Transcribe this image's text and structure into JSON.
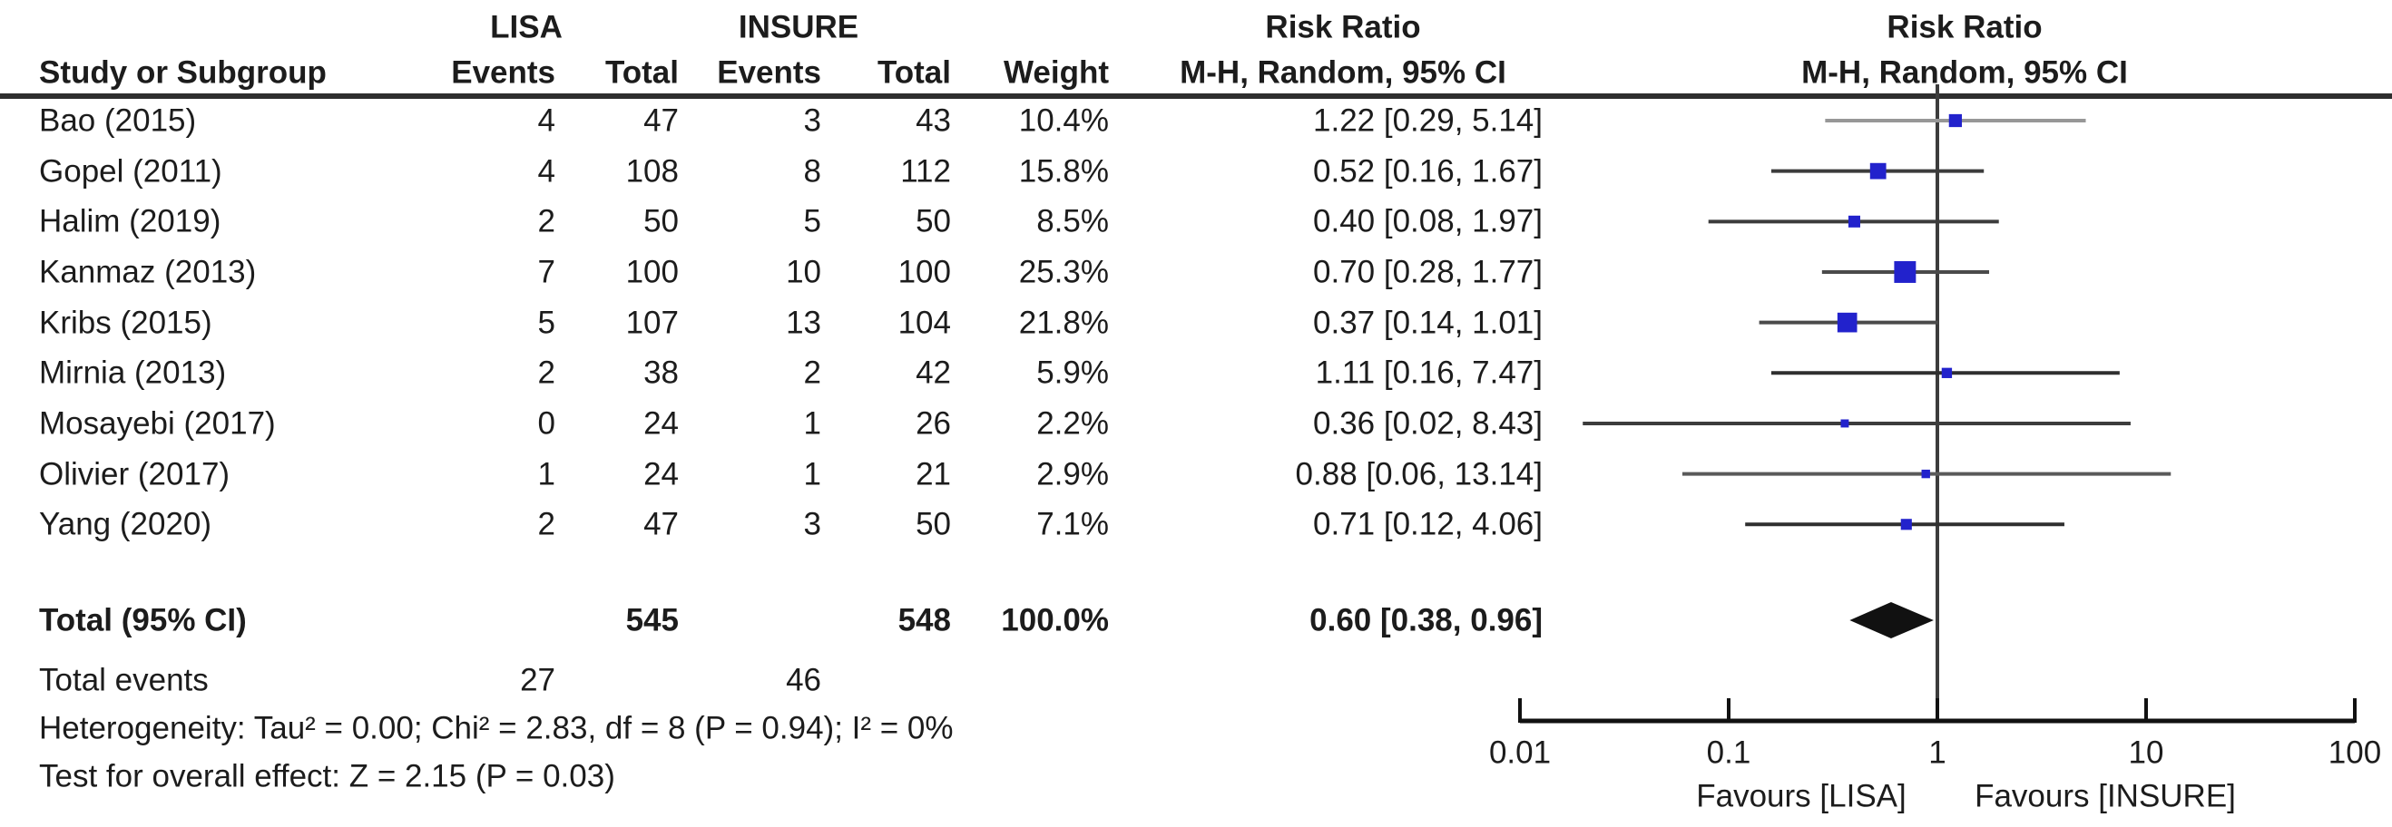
{
  "chart_data": {
    "type": "forest",
    "effect_measure": "Risk Ratio",
    "model": "M-H, Random, 95% CI",
    "groups": {
      "group1": "LISA",
      "group2": "INSURE"
    },
    "columns": {
      "study": "Study or Subgroup",
      "events": "Events",
      "total": "Total",
      "weight": "Weight",
      "effect_line1": "Risk Ratio",
      "effect_line2": "M-H, Random, 95% CI"
    },
    "studies": [
      {
        "study": "Bao (2015)",
        "events1": "4",
        "total1": "47",
        "events2": "3",
        "total2": "43",
        "weight": "10.4%",
        "weight_pct": 10.4,
        "rr": 1.22,
        "ci_low": 0.29,
        "ci_high": 5.14,
        "effect_label": "1.22 [0.29, 5.14]",
        "line_color": "#979797"
      },
      {
        "study": "Gopel (2011)",
        "events1": "4",
        "total1": "108",
        "events2": "8",
        "total2": "112",
        "weight": "15.8%",
        "weight_pct": 15.8,
        "rr": 0.52,
        "ci_low": 0.16,
        "ci_high": 1.67,
        "effect_label": "0.52 [0.16, 1.67]",
        "line_color": "#3c3c3c"
      },
      {
        "study": "Halim (2019)",
        "events1": "2",
        "total1": "50",
        "events2": "5",
        "total2": "50",
        "weight": "8.5%",
        "weight_pct": 8.5,
        "rr": 0.4,
        "ci_low": 0.08,
        "ci_high": 1.97,
        "effect_label": "0.40 [0.08, 1.97]",
        "line_color": "#3c3c3c"
      },
      {
        "study": "Kanmaz (2013)",
        "events1": "7",
        "total1": "100",
        "events2": "10",
        "total2": "100",
        "weight": "25.3%",
        "weight_pct": 25.3,
        "rr": 0.7,
        "ci_low": 0.28,
        "ci_high": 1.77,
        "effect_label": "0.70 [0.28, 1.77]",
        "line_color": "#4a4a4a"
      },
      {
        "study": "Kribs (2015)",
        "events1": "5",
        "total1": "107",
        "events2": "13",
        "total2": "104",
        "weight": "21.8%",
        "weight_pct": 21.8,
        "rr": 0.37,
        "ci_low": 0.14,
        "ci_high": 1.01,
        "effect_label": "0.37 [0.14, 1.01]",
        "line_color": "#4a4a4a"
      },
      {
        "study": "Mirnia (2013)",
        "events1": "2",
        "total1": "38",
        "events2": "2",
        "total2": "42",
        "weight": "5.9%",
        "weight_pct": 5.9,
        "rr": 1.11,
        "ci_low": 0.16,
        "ci_high": 7.47,
        "effect_label": "1.11 [0.16, 7.47]",
        "line_color": "#2f2f2f"
      },
      {
        "study": "Mosayebi (2017)",
        "events1": "0",
        "total1": "24",
        "events2": "1",
        "total2": "26",
        "weight": "2.2%",
        "weight_pct": 2.2,
        "rr": 0.36,
        "ci_low": 0.02,
        "ci_high": 8.43,
        "effect_label": "0.36 [0.02, 8.43]",
        "line_color": "#3c3c3c"
      },
      {
        "study": "Olivier (2017)",
        "events1": "1",
        "total1": "24",
        "events2": "1",
        "total2": "21",
        "weight": "2.9%",
        "weight_pct": 2.9,
        "rr": 0.88,
        "ci_low": 0.06,
        "ci_high": 13.14,
        "effect_label": "0.88 [0.06, 13.14]",
        "line_color": "#5a5a5a"
      },
      {
        "study": "Yang (2020)",
        "events1": "2",
        "total1": "47",
        "events2": "3",
        "total2": "50",
        "weight": "7.1%",
        "weight_pct": 7.1,
        "rr": 0.71,
        "ci_low": 0.12,
        "ci_high": 4.06,
        "effect_label": "0.71 [0.12, 4.06]",
        "line_color": "#2f2f2f"
      }
    ],
    "total": {
      "label": "Total (95% CI)",
      "total1": "545",
      "total2": "548",
      "weight": "100.0%",
      "rr": 0.6,
      "ci_low": 0.38,
      "ci_high": 0.96,
      "effect_label": "0.60 [0.38, 0.96]"
    },
    "total_events": {
      "label": "Total events",
      "events1": "27",
      "events2": "46"
    },
    "footnotes": {
      "heterogeneity": "Heterogeneity: Tau² = 0.00; Chi² = 2.83, df = 8 (P = 0.94); I² = 0%",
      "overall_effect": "Test for overall effect: Z = 2.15 (P = 0.03)"
    },
    "axis": {
      "scale": "log",
      "min": 0.01,
      "max": 100,
      "ticks": [
        0.01,
        0.1,
        1,
        10,
        100
      ],
      "tick_labels": [
        "0.01",
        "0.1",
        "1",
        "10",
        "100"
      ],
      "favours_left": "Favours [LISA]",
      "favours_right": "Favours [INSURE]"
    },
    "colors": {
      "marker": "#2222cc",
      "diamond": "#111111",
      "center_line": "#3c3c3c",
      "axis": "#111111",
      "text": "#1c1c1c"
    }
  }
}
